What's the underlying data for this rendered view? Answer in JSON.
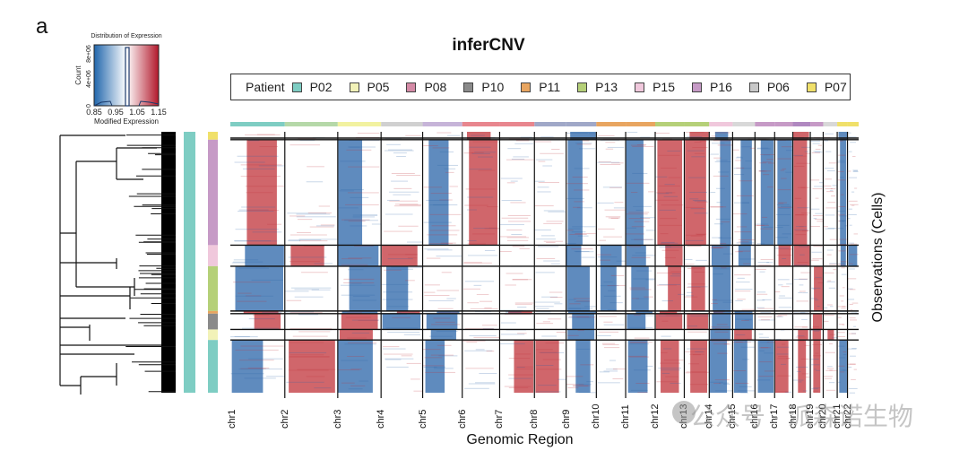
{
  "panel_label": "a",
  "watermark": "公众号 · 派森诺生物",
  "chart_data": {
    "type": "heatmap",
    "title": "inferCNV",
    "xlabel": "Genomic Region",
    "ylabel": "Observations (Cells)",
    "legend": {
      "title": "Patient",
      "position": "top",
      "entries": [
        {
          "name": "P02",
          "color": "#7ecdc3"
        },
        {
          "name": "P05",
          "color": "#f2f2b8"
        },
        {
          "name": "P08",
          "color": "#d48aa6"
        },
        {
          "name": "P10",
          "color": "#8a8a8a"
        },
        {
          "name": "P11",
          "color": "#e8a560"
        },
        {
          "name": "P13",
          "color": "#b5d078"
        },
        {
          "name": "P15",
          "color": "#f0c8dc"
        },
        {
          "name": "P16",
          "color": "#c69ac6"
        },
        {
          "name": "P06",
          "color": "#c8c8c8"
        },
        {
          "name": "P07",
          "color": "#f0e06a"
        }
      ]
    },
    "color_key": {
      "title": "Distribution of Expression",
      "xlabel": "Modified Expression",
      "ylabel": "Count",
      "x_ticks": [
        "0.85",
        "0.95",
        "1.05",
        "1.15"
      ],
      "y_ticks": [
        "0",
        "4e+06",
        "8e+06"
      ],
      "range": [
        0.85,
        1.15
      ],
      "low_color": "#2166ac",
      "mid_color": "#ffffff",
      "high_color": "#b2182b"
    },
    "chromosomes": [
      "chr1",
      "chr2",
      "chr3",
      "chr4",
      "chr5",
      "chr6",
      "chr7",
      "chr8",
      "chr9",
      "chr10",
      "chr11",
      "chr12",
      "chr13",
      "chr14",
      "chr15",
      "chr16",
      "chr17",
      "chr18",
      "chr19",
      "chr20",
      "chr21",
      "chr22"
    ],
    "chromosome_relative_lengths": [
      249,
      242,
      198,
      190,
      181,
      171,
      159,
      145,
      138,
      134,
      135,
      133,
      114,
      107,
      102,
      90,
      83,
      80,
      59,
      64,
      47,
      51
    ],
    "cell_group_patients": [
      "P07",
      "P16",
      "P15",
      "P13",
      "P11",
      "P10",
      "P05",
      "P02"
    ],
    "cell_group_relative_sizes": [
      3,
      40,
      8,
      17,
      1,
      6,
      4,
      20
    ]
  }
}
